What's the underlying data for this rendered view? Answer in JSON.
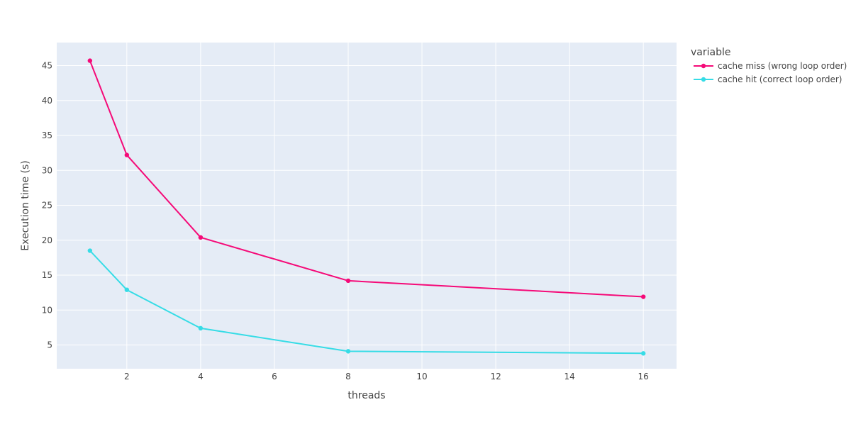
{
  "chart_data": {
    "type": "line",
    "title": "",
    "xlabel": "threads",
    "ylabel": "Execution time (s)",
    "xlim": [
      0.1,
      16.9
    ],
    "ylim": [
      1.6,
      48.3
    ],
    "x_ticks": [
      2,
      4,
      6,
      8,
      10,
      12,
      14,
      16
    ],
    "y_ticks": [
      5,
      10,
      15,
      20,
      25,
      30,
      35,
      40,
      45
    ],
    "grid": true,
    "legend": {
      "title": "variable",
      "placement": "right-top"
    },
    "x": [
      1,
      2,
      4,
      8,
      16
    ],
    "series": [
      {
        "name": "cache miss (wrong loop order)",
        "color": "#f50a78",
        "values": [
          45.7,
          32.2,
          20.4,
          14.2,
          11.9
        ]
      },
      {
        "name": "cache hit (correct loop order)",
        "color": "#36dce6",
        "values": [
          18.5,
          12.9,
          7.4,
          4.1,
          3.8
        ]
      }
    ],
    "colors": {
      "plot_background": "#e5ecf6",
      "grid": "#ffffff",
      "text": "#444444"
    }
  }
}
